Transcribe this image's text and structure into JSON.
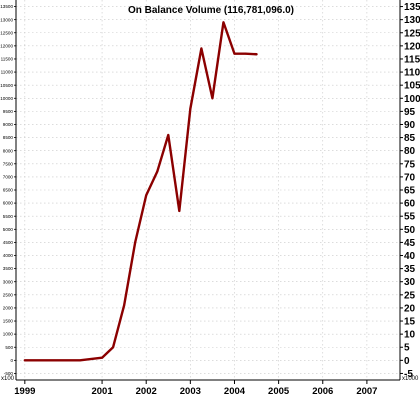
{
  "chart_data": {
    "type": "line",
    "title": "On Balance Volume (116,781,096.0)",
    "x_unit_left": "x100",
    "x_unit_right": "x1000",
    "x_tick_labels": [
      "1999",
      "2001",
      "2002",
      "2003",
      "2004",
      "2005",
      "2006",
      "2007"
    ],
    "x_tick_values": [
      1999.0,
      2000.75,
      2001.75,
      2002.75,
      2003.75,
      2004.75,
      2005.75,
      2006.75
    ],
    "xlim": [
      1998.8,
      2007.5
    ],
    "left_axis": {
      "ticks": [
        -500,
        0,
        500,
        1000,
        1500,
        2000,
        2500,
        3000,
        3500,
        4000,
        4500,
        5000,
        5500,
        6000,
        6500,
        7000,
        7500,
        8000,
        8500,
        9000,
        9500,
        10000,
        10500,
        11000,
        11500,
        12000,
        12500,
        13000,
        13500
      ],
      "tick_labels": [
        "-500",
        "0",
        "500",
        "1000",
        "1500",
        "2000",
        "2500",
        "3000",
        "3500",
        "4000",
        "4500",
        "5000",
        "5500",
        "6000",
        "6500",
        "7000",
        "7500",
        "8000",
        "8500",
        "9000",
        "9500",
        "10000",
        "10500",
        "11000",
        "11500",
        "12000",
        "12500",
        "13000",
        "13500"
      ]
    },
    "right_axis": {
      "ticks": [
        -5,
        0,
        5,
        10,
        15,
        20,
        25,
        30,
        35,
        40,
        45,
        50,
        55,
        60,
        65,
        70,
        75,
        80,
        85,
        90,
        95,
        100,
        105,
        110,
        115,
        120,
        125,
        130,
        135
      ],
      "tick_labels": [
        "-5",
        "0",
        "5",
        "10",
        "15",
        "20",
        "25",
        "30",
        "35",
        "40",
        "45",
        "50",
        "55",
        "60",
        "65",
        "70",
        "75",
        "80",
        "85",
        "90",
        "95",
        "100",
        "105",
        "110",
        "115",
        "120",
        "125",
        "130",
        "135"
      ]
    },
    "ylim": [
      -7.5,
      137.5
    ],
    "grid": true,
    "line_color": "#8b0000",
    "series": [
      {
        "x": [
          1999.0,
          1999.75,
          2000.25,
          2000.75,
          2001.0,
          2001.25,
          2001.5,
          2001.75,
          2002.0,
          2002.25,
          2002.5,
          2002.75,
          2003.0,
          2003.25,
          2003.5,
          2003.75,
          2004.0,
          2004.25
        ],
        "values": [
          0,
          0,
          0,
          1,
          5,
          21,
          45,
          63,
          72,
          86,
          57,
          96,
          119,
          100,
          129,
          117,
          117,
          116.8
        ]
      }
    ]
  }
}
